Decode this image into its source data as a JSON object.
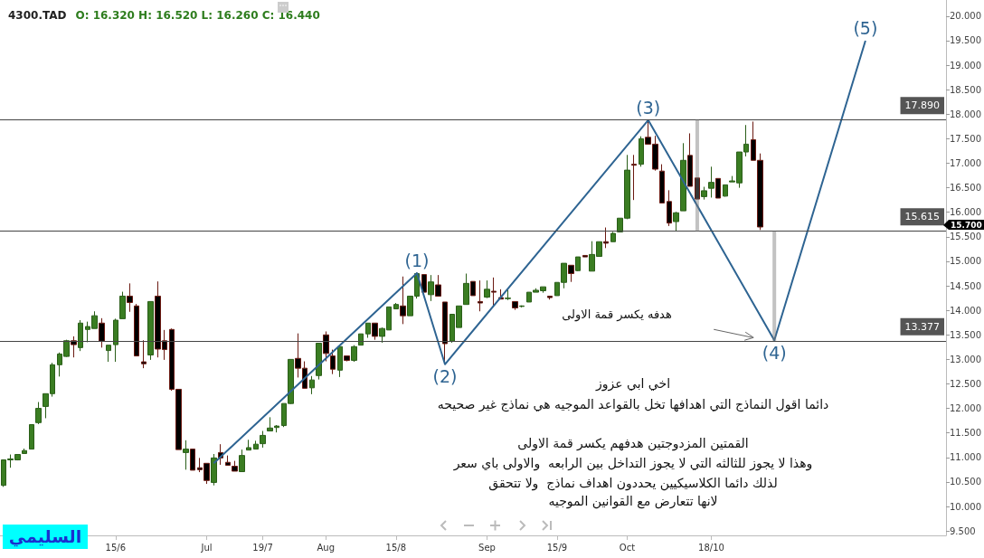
{
  "chart_data": {
    "type": "candlestick",
    "title": "4300.TAD",
    "subtitle": "O: 16.320 H: 16.520 L: 16.260 C: 16.440",
    "categories": [
      null,
      null,
      null,
      null,
      null,
      null,
      null,
      null,
      null,
      null,
      null,
      null,
      null,
      null,
      null,
      null,
      "15/6",
      null,
      null,
      null,
      null,
      null,
      null,
      null,
      null,
      null,
      null,
      null,
      null,
      "Jul",
      null,
      null,
      null,
      null,
      null,
      null,
      null,
      "19/7",
      null,
      null,
      null,
      null,
      null,
      null,
      null,
      null,
      "Aug",
      null,
      null,
      null,
      null,
      null,
      null,
      null,
      null,
      null,
      "15/8",
      null,
      null,
      null,
      null,
      null,
      null,
      null,
      null,
      null,
      null,
      null,
      null,
      "Sep",
      null,
      null,
      null,
      null,
      null,
      null,
      null,
      null,
      null,
      "15/9",
      null,
      null,
      null,
      null,
      null,
      null,
      null,
      null,
      null,
      "Oct",
      null,
      null,
      null,
      null,
      null,
      null,
      null,
      null,
      null,
      null,
      null,
      "18/10",
      null,
      null,
      null,
      null,
      null,
      null,
      null,
      null,
      null,
      null,
      null,
      null,
      null,
      null,
      null,
      null,
      null,
      null,
      null,
      null,
      null,
      null,
      null,
      null,
      null,
      null,
      null,
      null,
      null,
      null,
      null,
      null,
      null
    ],
    "ohlc": [
      [
        10.43,
        10.96,
        10.4,
        10.95
      ],
      [
        10.95,
        11.06,
        10.79,
        10.97
      ],
      [
        10.95,
        11.06,
        10.94,
        11.06
      ],
      [
        11.08,
        11.18,
        11.08,
        11.14
      ],
      [
        11.17,
        11.67,
        11.17,
        11.67
      ],
      [
        11.71,
        12.13,
        11.68,
        12.0
      ],
      [
        12.04,
        12.3,
        11.8,
        12.3
      ],
      [
        12.3,
        12.93,
        12.24,
        12.89
      ],
      [
        12.89,
        13.14,
        12.65,
        13.11
      ],
      [
        13.06,
        13.4,
        13.05,
        13.38
      ],
      [
        13.38,
        13.47,
        13.04,
        13.3
      ],
      [
        13.24,
        13.8,
        13.17,
        13.74
      ],
      [
        13.61,
        13.77,
        13.35,
        13.67
      ],
      [
        13.63,
        13.98,
        13.63,
        13.89
      ],
      [
        13.74,
        13.84,
        13.24,
        13.37
      ],
      [
        13.18,
        13.29,
        12.95,
        13.29
      ],
      [
        13.3,
        13.83,
        12.95,
        13.8
      ],
      [
        13.83,
        14.38,
        13.83,
        14.29
      ],
      [
        14.29,
        14.55,
        13.97,
        14.16
      ],
      [
        14.09,
        14.13,
        13.07,
        13.07
      ],
      [
        12.95,
        13.39,
        12.82,
        12.91
      ],
      [
        13.09,
        14.18,
        12.99,
        14.18
      ],
      [
        14.29,
        14.59,
        13.04,
        13.21
      ],
      [
        13.38,
        13.6,
        12.99,
        13.2
      ],
      [
        13.61,
        13.63,
        12.36,
        12.39
      ],
      [
        12.39,
        12.39,
        11.16,
        11.16
      ],
      [
        11.1,
        11.35,
        10.75,
        11.17
      ],
      [
        11.17,
        11.17,
        10.74,
        10.74
      ],
      [
        10.79,
        10.99,
        10.7,
        10.75
      ],
      [
        10.88,
        10.88,
        10.46,
        10.53
      ],
      [
        10.49,
        11.07,
        10.43,
        10.99
      ],
      [
        11.1,
        11.27,
        10.85,
        10.99
      ],
      [
        10.9,
        11.04,
        10.84,
        10.84
      ],
      [
        10.82,
        10.93,
        10.72,
        10.72
      ],
      [
        10.71,
        11.16,
        10.71,
        11.04
      ],
      [
        11.15,
        11.36,
        11.15,
        11.2
      ],
      [
        11.17,
        11.34,
        11.17,
        11.27
      ],
      [
        11.28,
        11.54,
        11.2,
        11.45
      ],
      [
        11.54,
        11.82,
        11.54,
        11.6
      ],
      [
        11.61,
        11.66,
        11.51,
        11.64
      ],
      [
        11.65,
        12.1,
        11.62,
        12.1
      ],
      [
        12.1,
        13.0,
        12.09,
        13.0
      ],
      [
        13.02,
        13.53,
        12.63,
        12.82
      ],
      [
        12.82,
        12.96,
        12.41,
        12.41
      ],
      [
        12.42,
        12.66,
        12.29,
        12.58
      ],
      [
        12.67,
        13.33,
        12.59,
        13.33
      ],
      [
        13.5,
        13.57,
        12.96,
        13.12
      ],
      [
        13.07,
        13.2,
        12.7,
        12.8
      ],
      [
        12.78,
        13.26,
        12.64,
        13.26
      ],
      [
        13.07,
        13.07,
        12.96,
        12.98
      ],
      [
        12.98,
        13.29,
        12.95,
        13.26
      ],
      [
        13.29,
        13.52,
        13.29,
        13.52
      ],
      [
        13.52,
        13.74,
        13.44,
        13.74
      ],
      [
        13.74,
        13.74,
        13.4,
        13.47
      ],
      [
        13.47,
        13.65,
        13.34,
        13.63
      ],
      [
        13.6,
        14.07,
        13.6,
        14.07
      ],
      [
        14.03,
        14.15,
        14.03,
        14.12
      ],
      [
        14.09,
        14.69,
        13.72,
        13.89
      ],
      [
        13.89,
        14.29,
        13.89,
        14.29
      ],
      [
        14.29,
        14.77,
        14.24,
        14.75
      ],
      [
        14.73,
        14.73,
        14.37,
        14.37
      ],
      [
        14.32,
        14.72,
        14.19,
        14.58
      ],
      [
        14.52,
        14.72,
        14.29,
        14.29
      ],
      [
        14.17,
        14.17,
        12.95,
        13.32
      ],
      [
        13.37,
        13.92,
        13.34,
        13.92
      ],
      [
        13.65,
        14.09,
        13.65,
        14.09
      ],
      [
        14.12,
        14.75,
        14.12,
        14.55
      ],
      [
        14.59,
        14.59,
        14.3,
        14.3
      ],
      [
        14.18,
        14.61,
        13.98,
        14.15
      ],
      [
        14.27,
        14.61,
        14.25,
        14.43
      ],
      [
        14.39,
        14.67,
        14.07,
        14.37
      ],
      [
        14.26,
        14.43,
        14.23,
        14.23
      ],
      [
        14.24,
        14.42,
        14.21,
        14.25
      ],
      [
        14.18,
        14.18,
        14.01,
        14.05
      ],
      [
        14.08,
        14.1,
        14.06,
        14.09
      ],
      [
        14.17,
        14.37,
        14.17,
        14.37
      ],
      [
        14.37,
        14.45,
        14.37,
        14.41
      ],
      [
        14.4,
        14.48,
        14.36,
        14.48
      ],
      [
        14.29,
        14.29,
        14.22,
        14.26
      ],
      [
        14.3,
        14.57,
        14.3,
        14.57
      ],
      [
        14.57,
        14.96,
        14.45,
        14.96
      ],
      [
        14.92,
        14.92,
        14.58,
        14.75
      ],
      [
        14.81,
        15.09,
        14.8,
        15.09
      ],
      [
        15.12,
        15.12,
        15.09,
        15.09
      ],
      [
        14.8,
        15.41,
        14.8,
        15.14
      ],
      [
        15.1,
        15.4,
        15.1,
        15.4
      ],
      [
        15.4,
        15.69,
        15.27,
        15.37
      ],
      [
        15.4,
        15.6,
        15.4,
        15.57
      ],
      [
        15.6,
        15.88,
        15.6,
        15.88
      ],
      [
        15.88,
        17.17,
        15.86,
        16.86
      ],
      [
        16.98,
        17.17,
        16.25,
        16.96
      ],
      [
        16.98,
        17.55,
        16.93,
        17.5
      ],
      [
        17.53,
        17.88,
        17.39,
        17.39
      ],
      [
        17.39,
        17.56,
        16.85,
        16.88
      ],
      [
        16.84,
        16.98,
        16.19,
        16.19
      ],
      [
        16.22,
        16.45,
        15.72,
        15.78
      ],
      [
        15.81,
        16.01,
        15.62,
        15.99
      ],
      [
        16.03,
        17.41,
        16.03,
        17.06
      ],
      [
        17.16,
        17.61,
        16.53,
        16.53
      ],
      [
        16.7,
        16.7,
        16.27,
        16.27
      ],
      [
        16.32,
        16.52,
        16.26,
        16.44
      ],
      [
        16.49,
        16.93,
        16.3,
        16.61
      ],
      [
        16.69,
        16.69,
        16.29,
        16.29
      ],
      [
        16.33,
        16.56,
        16.32,
        16.56
      ],
      [
        16.62,
        16.74,
        16.62,
        16.64
      ],
      [
        16.6,
        17.23,
        16.5,
        17.23
      ],
      [
        17.23,
        17.78,
        17.14,
        17.39
      ],
      [
        17.48,
        17.85,
        17.06,
        17.06
      ],
      [
        17.06,
        17.2,
        15.64,
        15.7
      ],
      null,
      null,
      null,
      null,
      null,
      null,
      null,
      null,
      null,
      null,
      null,
      null,
      null,
      null,
      null,
      null,
      null,
      null,
      null,
      null,
      null,
      null,
      null,
      null,
      null,
      null
    ],
    "series": [
      {
        "type": "line",
        "color": "#2e6492",
        "values": [
          null,
          null,
          null,
          null,
          null,
          null,
          null,
          null,
          null,
          null,
          null,
          null,
          null,
          null,
          null,
          null,
          null,
          null,
          null,
          null,
          null,
          null,
          null,
          null,
          null,
          null,
          null,
          null,
          null,
          null,
          10.88,
          null,
          null,
          null,
          null,
          null,
          null,
          null,
          null,
          null,
          null,
          null,
          null,
          null,
          null,
          null,
          null,
          null,
          null,
          null,
          null,
          null,
          null,
          null,
          null,
          null,
          null,
          null,
          null,
          14.76,
          null,
          null,
          null,
          12.9,
          null,
          null,
          null,
          null,
          null,
          null,
          null,
          null,
          null,
          null,
          null,
          null,
          null,
          null,
          null,
          null,
          null,
          null,
          null,
          null,
          null,
          null,
          null,
          null,
          null,
          null,
          null,
          null,
          17.88,
          null,
          null,
          null,
          null,
          null,
          null,
          null,
          null,
          null,
          null,
          null,
          null,
          null,
          null,
          null,
          null,
          null,
          13.39,
          null,
          null,
          null,
          null,
          null,
          null,
          null,
          null,
          null,
          null,
          null,
          null,
          19.5,
          null,
          null,
          null,
          null,
          null,
          null,
          null,
          null,
          null,
          null,
          null
        ]
      }
    ],
    "ylim": [
      9.41,
      20.33
    ],
    "yticks": [
      {
        "value": 9.5,
        "label": "9.500"
      },
      {
        "value": 10,
        "label": "10.000"
      },
      {
        "value": 10.5,
        "label": "10.500"
      },
      {
        "value": 11,
        "label": "11.000"
      },
      {
        "value": 11.5,
        "label": "11.500"
      },
      {
        "value": 12,
        "label": "12.000"
      },
      {
        "value": 12.5,
        "label": "12.500"
      },
      {
        "value": 13,
        "label": "13.000"
      },
      {
        "value": 13.5,
        "label": "13.500"
      },
      {
        "value": 14,
        "label": "14.000"
      },
      {
        "value": 14.5,
        "label": "14.500"
      },
      {
        "value": 15,
        "label": "15.000"
      },
      {
        "value": 15.5,
        "label": "15.500"
      },
      {
        "value": 16,
        "label": "16.000"
      },
      {
        "value": 16.5,
        "label": "16.500"
      },
      {
        "value": 17,
        "label": "17.000"
      },
      {
        "value": 17.5,
        "label": "17.500"
      },
      {
        "value": 18,
        "label": "18.000"
      },
      {
        "value": 18.5,
        "label": "18.500"
      },
      {
        "value": 19,
        "label": "19.000"
      },
      {
        "value": 19.5,
        "label": "19.500"
      },
      {
        "value": 20,
        "label": "20.000"
      }
    ],
    "ref_lines": [
      {
        "axis": "y",
        "value": 17.89,
        "label": "17.890",
        "color": "#444444"
      },
      {
        "axis": "y",
        "value": 15.615,
        "label": "15.615",
        "color": "#444444"
      },
      {
        "axis": "y",
        "value": 13.377,
        "label": "13.377",
        "color": "#444444"
      }
    ],
    "annotations": [
      "(1)",
      "(2)",
      "(3)",
      "(4)",
      "(5)",
      "هدفه يكسر قمة الاولى",
      "اخي ابي عزوز",
      "دائما اقول النماذج التي اهدافها تخل بالقواعد الموجيه هي نماذج غير صحيحه",
      "القمتين المزدوجتين هدفهم يكسر قمة الاولى",
      "وهذا لا يجوز للثالثه التي لا يجوز التداخل بين الرابعه  والاولى باي سعر",
      "لذلك دائما الكلاسيكيين يحددون اهداف نماذج  ولا تتحقق",
      "لانها تتعارض مع القوانين الموجيه",
      "السليمي",
      "15.700"
    ]
  }
}
